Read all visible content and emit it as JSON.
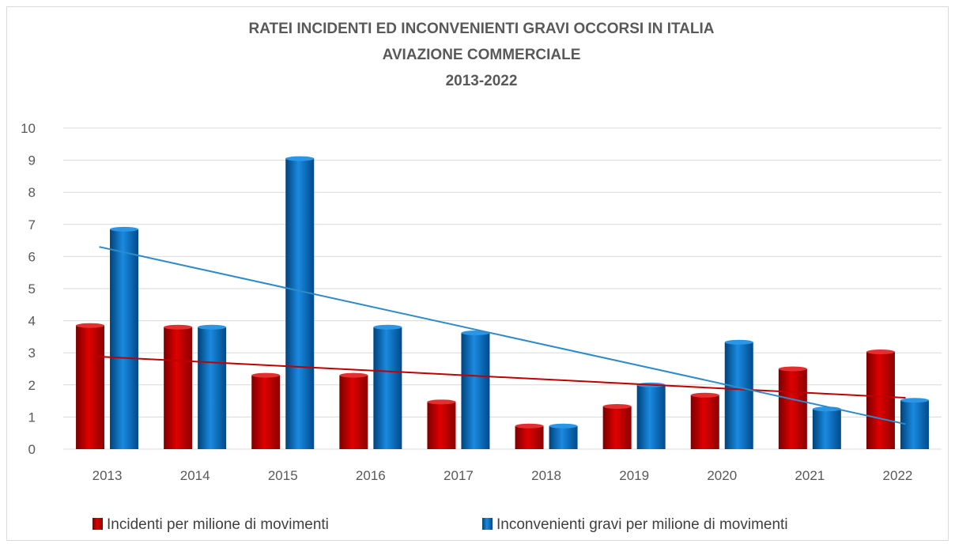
{
  "chart_data": {
    "type": "bar",
    "title": [
      "RATEI INCIDENTI ED INCONVENIENTI GRAVI OCCORSI IN ITALIA",
      "AVIAZIONE COMMERCIALE",
      "2013-2022"
    ],
    "categories": [
      "2013",
      "2014",
      "2015",
      "2016",
      "2017",
      "2018",
      "2019",
      "2020",
      "2021",
      "2022"
    ],
    "series": [
      {
        "name": "Incidenti per milione di movimenti",
        "color": "#c00000",
        "values": [
          3.85,
          3.8,
          2.3,
          2.3,
          1.47,
          0.72,
          1.33,
          1.68,
          2.5,
          3.03
        ]
      },
      {
        "name": "Inconvenienti gravi per milione di movimenti",
        "color": "#0070c0",
        "values": [
          6.85,
          3.8,
          9.05,
          3.8,
          3.62,
          0.72,
          2.0,
          3.33,
          1.25,
          1.52
        ]
      }
    ],
    "trendlines": [
      {
        "series": "Incidenti per milione di movimenti",
        "start": 2.88,
        "end": 1.6,
        "color": "#c00000"
      },
      {
        "series": "Inconvenienti gravi per milione di movimenti",
        "start": 6.3,
        "end": 0.78,
        "color": "#2e8bc9"
      }
    ],
    "y_ticks": [
      "0",
      "1",
      "2",
      "3",
      "4",
      "5",
      "6",
      "7",
      "8",
      "9",
      "10"
    ],
    "ylim": [
      0,
      10
    ],
    "grid": true,
    "legend_position": "bottom"
  }
}
